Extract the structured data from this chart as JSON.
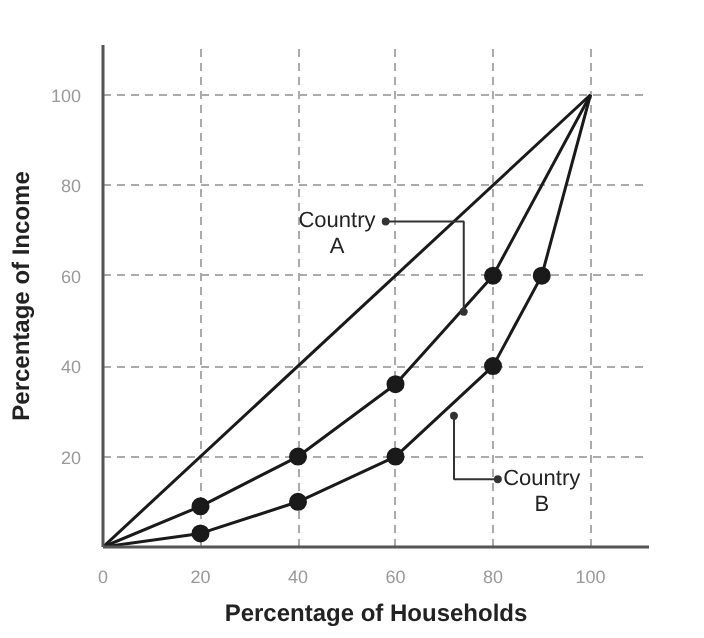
{
  "chart_data": {
    "type": "line",
    "xlabel": "Percentage of Households",
    "ylabel": "Percentage of Income",
    "xlim": [
      0,
      112
    ],
    "ylim": [
      0,
      111
    ],
    "xticks": [
      0,
      20,
      40,
      60,
      80,
      100
    ],
    "yticks": [
      20,
      40,
      60,
      80,
      100
    ],
    "grid": true,
    "line_style": "solid",
    "marker": "none",
    "series": [
      {
        "color": "#1a1a1a",
        "x": [
          0,
          100
        ],
        "values": [
          0,
          100
        ]
      },
      {
        "color": "#1a1a1a",
        "x": [
          0,
          20,
          40,
          60,
          80,
          100
        ],
        "values": [
          0,
          9,
          20,
          36,
          60,
          100
        ]
      },
      {
        "color": "#1a1a1a",
        "x": [
          0,
          20,
          40,
          60,
          80,
          90,
          100
        ],
        "values": [
          0,
          3,
          10,
          20,
          40,
          60,
          100
        ]
      },
      {
        "type": "scatter",
        "marker": "circle",
        "color": "#1a1a1a",
        "x": [
          20,
          40,
          60,
          80
        ],
        "values": [
          9,
          20,
          36,
          60
        ]
      },
      {
        "type": "scatter",
        "marker": "circle",
        "color": "#1a1a1a",
        "x": [
          20,
          40,
          60,
          80,
          90
        ],
        "values": [
          3,
          10,
          20,
          40,
          60
        ]
      }
    ],
    "annotations": [
      {
        "text": "Country A",
        "x": 74,
        "y": 52
      },
      {
        "text": "Country B",
        "x": 72,
        "y": 29
      }
    ]
  }
}
